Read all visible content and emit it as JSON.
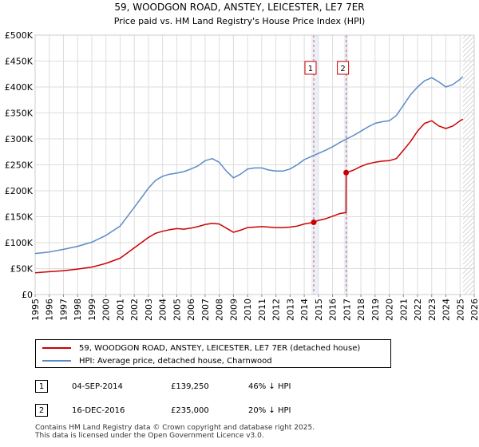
{
  "chart_data": {
    "type": "line",
    "title": "59, WOODGON ROAD, ANSTEY, LEICESTER, LE7 7ER",
    "subtitle": "Price paid vs. HM Land Registry's House Price Index (HPI)",
    "xlim": [
      1995,
      2026
    ],
    "ylim": [
      0,
      500000
    ],
    "x_ticks": [
      "1995",
      "1996",
      "1997",
      "1998",
      "1999",
      "2000",
      "2001",
      "2002",
      "2003",
      "2004",
      "2005",
      "2006",
      "2007",
      "2008",
      "2009",
      "2010",
      "2011",
      "2012",
      "2013",
      "2014",
      "2015",
      "2016",
      "2017",
      "2018",
      "2019",
      "2020",
      "2021",
      "2022",
      "2023",
      "2024",
      "2025",
      "2026"
    ],
    "y_ticks": [
      {
        "value": 0,
        "label": "£0"
      },
      {
        "value": 50000,
        "label": "£50K"
      },
      {
        "value": 100000,
        "label": "£100K"
      },
      {
        "value": 150000,
        "label": "£150K"
      },
      {
        "value": 200000,
        "label": "£200K"
      },
      {
        "value": 250000,
        "label": "£250K"
      },
      {
        "value": 300000,
        "label": "£300K"
      },
      {
        "value": 350000,
        "label": "£350K"
      },
      {
        "value": 400000,
        "label": "£400K"
      },
      {
        "value": 450000,
        "label": "£450K"
      },
      {
        "value": 500000,
        "label": "£500K"
      }
    ],
    "grid": true,
    "series": [
      {
        "name": "59, WOODGON ROAD, ANSTEY, LEICESTER, LE7 7ER (detached house)",
        "color": "#cc0000",
        "x": [
          1995.0,
          1996.0,
          1997.0,
          1998.0,
          1999.0,
          2000.0,
          2001.0,
          2002.0,
          2003.0,
          2003.5,
          2004.0,
          2004.5,
          2005.0,
          2005.5,
          2006.0,
          2006.5,
          2007.0,
          2007.5,
          2008.0,
          2008.5,
          2009.0,
          2009.5,
          2010.0,
          2010.5,
          2011.0,
          2011.5,
          2012.0,
          2012.5,
          2013.0,
          2013.5,
          2014.0,
          2014.67,
          2015.0,
          2015.5,
          2016.0,
          2016.5,
          2016.95,
          2016.96,
          2017.5,
          2018.0,
          2018.5,
          2019.0,
          2019.5,
          2020.0,
          2020.5,
          2021.0,
          2021.5,
          2022.0,
          2022.5,
          2023.0,
          2023.5,
          2024.0,
          2024.5,
          2025.0,
          2025.2
        ],
        "y": [
          42000,
          44000,
          46000,
          49000,
          53000,
          60000,
          70000,
          90000,
          110000,
          118000,
          122000,
          125000,
          127000,
          126000,
          128000,
          131000,
          135000,
          137000,
          136000,
          128000,
          120000,
          124000,
          129000,
          130000,
          131000,
          130000,
          129000,
          129000,
          130000,
          132000,
          136000,
          139250,
          143000,
          146000,
          151000,
          156000,
          158000,
          235000,
          240000,
          247000,
          252000,
          255000,
          257000,
          258000,
          262000,
          278000,
          295000,
          315000,
          330000,
          335000,
          325000,
          320000,
          325000,
          335000,
          338000
        ]
      },
      {
        "name": "HPI: Average price, detached house, Charnwood",
        "color": "#5b8ac7",
        "x": [
          1995.0,
          1996.0,
          1997.0,
          1998.0,
          1999.0,
          2000.0,
          2001.0,
          2002.0,
          2003.0,
          2003.5,
          2004.0,
          2004.5,
          2005.0,
          2005.5,
          2006.0,
          2006.5,
          2007.0,
          2007.5,
          2008.0,
          2008.5,
          2009.0,
          2009.5,
          2010.0,
          2010.5,
          2011.0,
          2011.5,
          2012.0,
          2012.5,
          2013.0,
          2013.5,
          2014.0,
          2014.5,
          2015.0,
          2015.5,
          2016.0,
          2016.5,
          2017.0,
          2017.5,
          2018.0,
          2018.5,
          2019.0,
          2019.5,
          2020.0,
          2020.5,
          2021.0,
          2021.5,
          2022.0,
          2022.5,
          2023.0,
          2023.5,
          2024.0,
          2024.5,
          2025.0,
          2025.2
        ],
        "y": [
          79000,
          82000,
          87000,
          93000,
          101000,
          114000,
          132000,
          168000,
          205000,
          220000,
          228000,
          232000,
          234000,
          237000,
          242000,
          248000,
          258000,
          262000,
          255000,
          238000,
          225000,
          232000,
          242000,
          244000,
          244000,
          240000,
          238000,
          238000,
          242000,
          250000,
          260000,
          266000,
          272000,
          278000,
          285000,
          293000,
          300000,
          307000,
          315000,
          323000,
          330000,
          333000,
          335000,
          345000,
          365000,
          385000,
          400000,
          412000,
          418000,
          410000,
          400000,
          405000,
          415000,
          420000
        ]
      }
    ],
    "markers": [
      {
        "label": "1",
        "x": 2014.67,
        "y": 139250,
        "line_from": 2014.5,
        "line_to": 2015.0
      },
      {
        "label": "2",
        "x": 2016.96,
        "y": 235000,
        "line_from": 2016.8,
        "line_to": 2017.1
      }
    ],
    "future_hatch_from": 2025.2
  },
  "legend": {
    "property_label": "59, WOODGON ROAD, ANSTEY, LEICESTER, LE7 7ER (detached house)",
    "hpi_label": "HPI: Average price, detached house, Charnwood",
    "property_color": "#cc0000",
    "hpi_color": "#5b8ac7"
  },
  "transactions": [
    {
      "num": "1",
      "date": "04-SEP-2014",
      "price": "£139,250",
      "hpi": "46% ↓ HPI"
    },
    {
      "num": "2",
      "date": "16-DEC-2016",
      "price": "£235,000",
      "hpi": "20% ↓ HPI"
    }
  ],
  "footer": {
    "line1": "Contains HM Land Registry data © Crown copyright and database right 2025.",
    "line2": "This data is licensed under the Open Government Licence v3.0."
  }
}
